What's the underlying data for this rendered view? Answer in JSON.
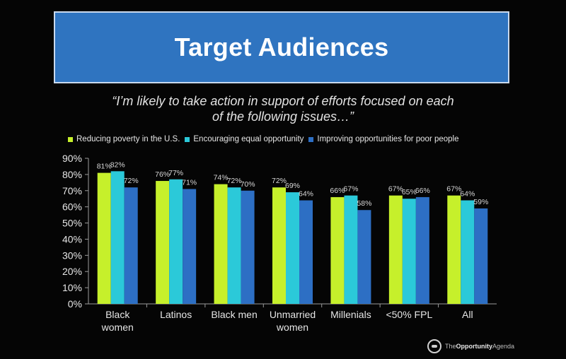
{
  "header": {
    "title": "Target Audiences"
  },
  "subtitle": {
    "line1": "“I’m likely to take action in support of efforts focused on each",
    "line2": "of the following issues…”"
  },
  "footer": {
    "logo_prefix": "The",
    "logo_name": "Opportunity",
    "logo_suffix": "Agenda"
  },
  "chart_data": {
    "type": "bar",
    "categories": [
      [
        "Black",
        "women"
      ],
      [
        "Latinos"
      ],
      [
        "Black men"
      ],
      [
        "Unmarried",
        "women"
      ],
      [
        "Millenials"
      ],
      [
        "<50% FPL"
      ],
      [
        "All"
      ]
    ],
    "series": [
      {
        "name": "Reducing poverty in the U.S.",
        "color": "#c6f02b",
        "values": [
          81,
          76,
          74,
          72,
          66,
          67,
          67
        ]
      },
      {
        "name": "Encouraging equal opportunity",
        "color": "#2bc9d9",
        "values": [
          82,
          77,
          72,
          69,
          67,
          65,
          64
        ]
      },
      {
        "name": "Improving opportunities for poor people",
        "color": "#2d6fc4",
        "values": [
          72,
          71,
          70,
          64,
          58,
          66,
          59
        ]
      }
    ],
    "ylim": [
      0,
      90
    ],
    "yticks": [
      "0%",
      "10%",
      "20%",
      "30%",
      "40%",
      "50%",
      "60%",
      "70%",
      "80%",
      "90%"
    ],
    "value_suffix": "%",
    "legend_position": "top",
    "grid": false
  }
}
